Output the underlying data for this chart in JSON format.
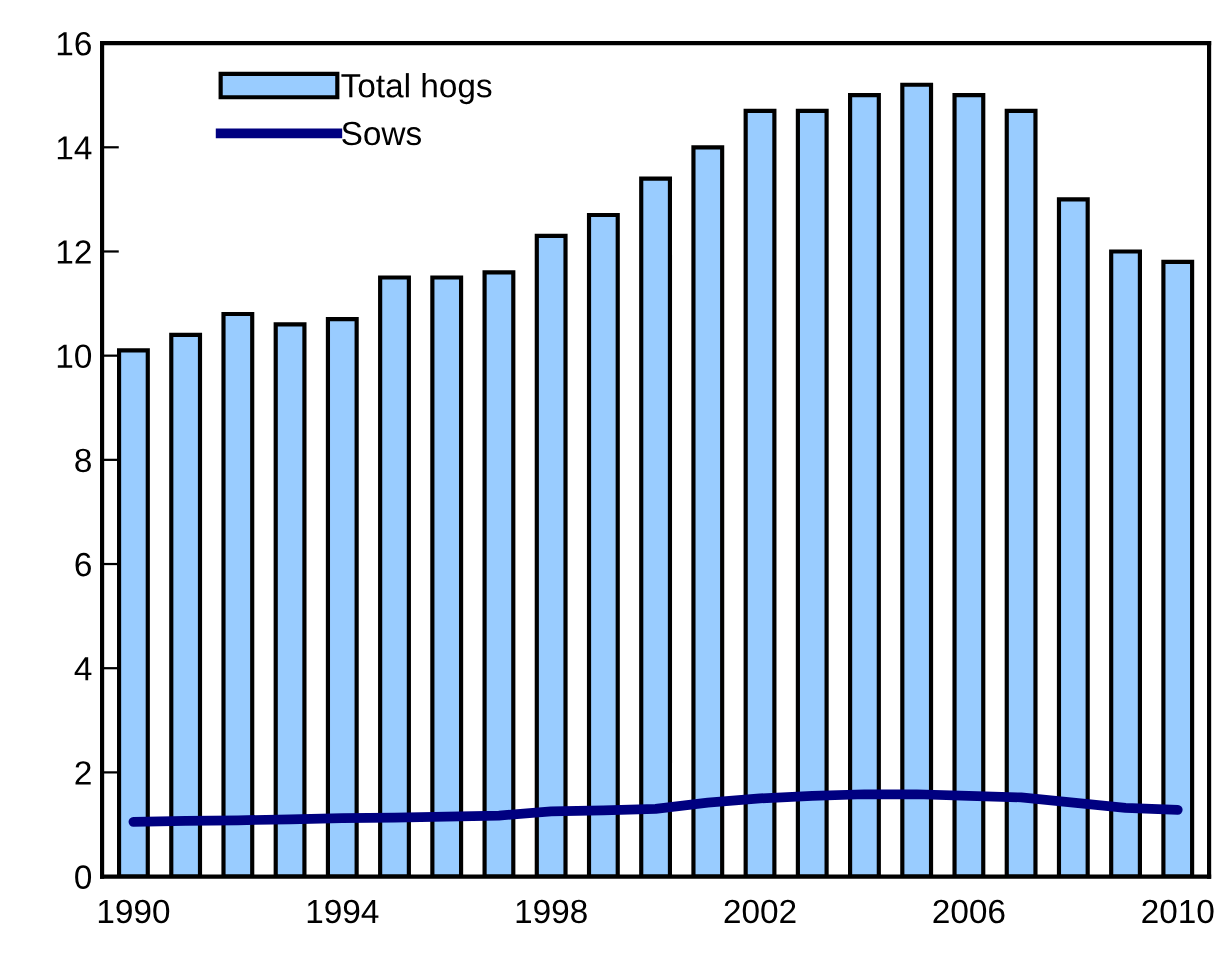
{
  "chart_data": {
    "type": "bar",
    "categories": [
      "1990",
      null,
      null,
      null,
      "1994",
      null,
      null,
      null,
      "1998",
      null,
      null,
      null,
      "2002",
      null,
      null,
      null,
      "2006",
      null,
      null,
      null,
      "2010"
    ],
    "series": [
      {
        "name": "Total hogs",
        "color": "#99ccff",
        "values": [
          10.1,
          10.4,
          10.8,
          10.6,
          10.7,
          11.5,
          11.5,
          11.6,
          12.3,
          12.7,
          13.4,
          14.0,
          14.7,
          14.7,
          15.0,
          15.2,
          15.0,
          14.7,
          13.0,
          12.0,
          11.8
        ]
      },
      {
        "name": "Sows",
        "type": "line",
        "color": "#000080",
        "values": [
          1.05,
          1.07,
          1.08,
          1.1,
          1.12,
          1.13,
          1.15,
          1.17,
          1.25,
          1.27,
          1.3,
          1.42,
          1.5,
          1.55,
          1.58,
          1.58,
          1.55,
          1.52,
          1.42,
          1.32,
          1.28
        ]
      }
    ],
    "ylim": [
      0,
      16
    ],
    "yticks": [
      0,
      2,
      4,
      6,
      8,
      10,
      12,
      14,
      16
    ],
    "grid": false,
    "legend": "top left",
    "marker": "none",
    "line_style": "solid"
  }
}
